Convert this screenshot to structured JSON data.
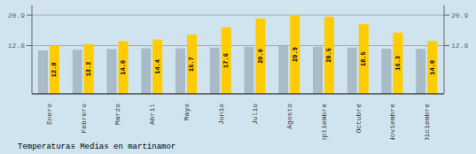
{
  "chart_data": {
    "type": "bar",
    "title": "Temperaturas Medias en martinamor",
    "categories": [
      "Enero",
      "Febrero",
      "Marzo",
      "Abril",
      "Mayo",
      "Junio",
      "Julio",
      "Agosto",
      "Septiembre",
      "Octubre",
      "Noviembre",
      "Diciembre"
    ],
    "series": [
      {
        "color": "#AABBC8",
        "values": [
          11.5,
          11.7,
          11.9,
          12.1,
          12.1,
          12.3,
          12.5,
          12.7,
          12.5,
          12.3,
          12.0,
          11.9
        ]
      },
      {
        "color": "#FFCC00",
        "values": [
          12.8,
          13.2,
          14.0,
          14.4,
          15.7,
          17.6,
          20.0,
          20.9,
          20.5,
          18.5,
          16.3,
          14.0
        ],
        "data_labels": true,
        "value_labels": [
          "12.8",
          "13.2",
          "14.0",
          "14.4",
          "15.7",
          "17.6",
          "20.0",
          "20.9",
          "20.5",
          "18.5",
          "16.3",
          "14.0"
        ]
      }
    ],
    "ylim": [
      0,
      23.5
    ],
    "yticks": [
      12.8,
      20.9
    ],
    "y2lim": [
      0,
      23.5
    ],
    "y2ticks": [
      12.8,
      20.9
    ],
    "grid": true
  }
}
